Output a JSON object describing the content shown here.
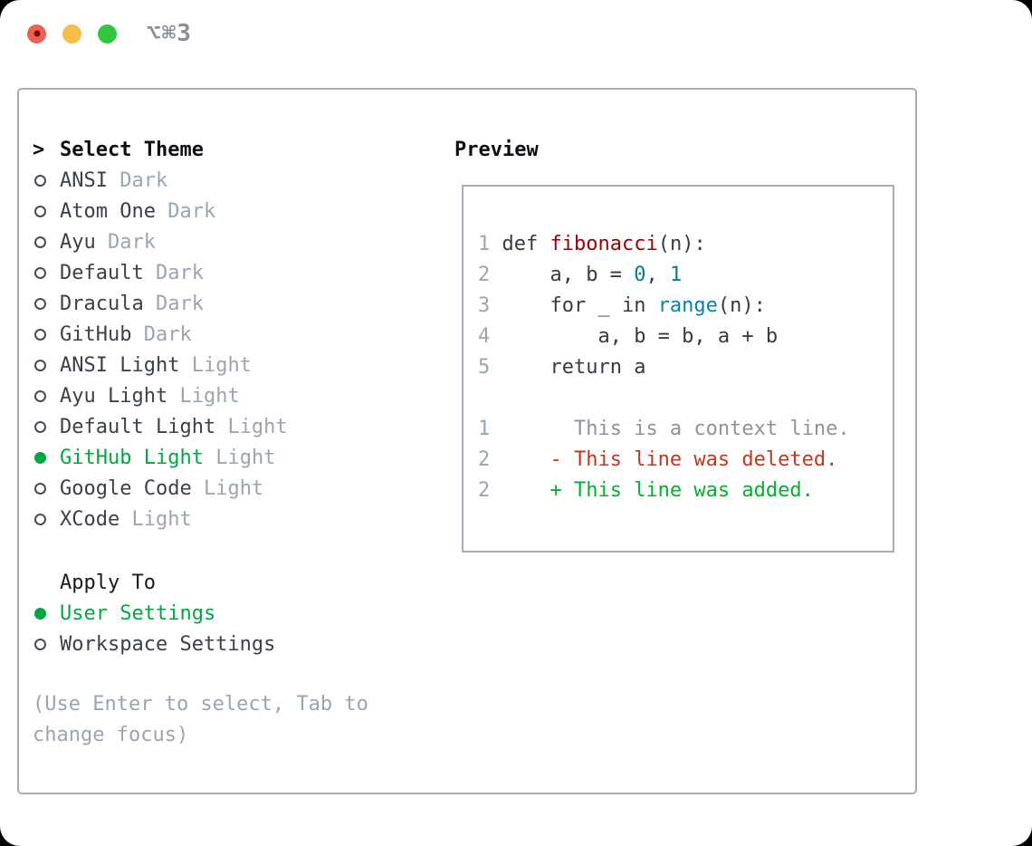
{
  "window": {
    "title": "⌥⌘3"
  },
  "colors": {
    "traffic_red": "#ee5f56",
    "traffic_red_inner": "#7a1008",
    "traffic_yellow": "#f8bd49",
    "traffic_green": "#31c63f",
    "selected_green": "#00a83f",
    "code_plain": "#353b45",
    "code_function": "#990000",
    "code_number": "#008080",
    "code_builtin": "#0086b3",
    "line_number": "#9aa5b3",
    "diff_context": "#8d939b",
    "diff_deleted": "#c5361c",
    "diff_added": "#00b22c"
  },
  "theme_picker": {
    "prompt": ">",
    "title": "Select Theme",
    "items": [
      {
        "name": "ANSI",
        "variant": "Dark",
        "selected": false
      },
      {
        "name": "Atom One",
        "variant": "Dark",
        "selected": false
      },
      {
        "name": "Ayu",
        "variant": "Dark",
        "selected": false
      },
      {
        "name": "Default",
        "variant": "Dark",
        "selected": false
      },
      {
        "name": "Dracula",
        "variant": "Dark",
        "selected": false
      },
      {
        "name": "GitHub",
        "variant": "Dark",
        "selected": false
      },
      {
        "name": "ANSI Light",
        "variant": "Light",
        "selected": false
      },
      {
        "name": "Ayu Light",
        "variant": "Light",
        "selected": false
      },
      {
        "name": "Default Light",
        "variant": "Light",
        "selected": false
      },
      {
        "name": "GitHub Light",
        "variant": "Light",
        "selected": true
      },
      {
        "name": "Google Code",
        "variant": "Light",
        "selected": false
      },
      {
        "name": "XCode",
        "variant": "Light",
        "selected": false
      }
    ]
  },
  "apply_to": {
    "title": "Apply To",
    "options": [
      {
        "label": "User Settings",
        "selected": true
      },
      {
        "label": "Workspace Settings",
        "selected": false
      }
    ]
  },
  "help_text": "(Use Enter to select, Tab to change focus)",
  "preview": {
    "title": "Preview",
    "code_lines": [
      {
        "num": "1",
        "segments": [
          {
            "text": "def ",
            "color": "plain"
          },
          {
            "text": "fibonacci",
            "color": "function"
          },
          {
            "text": "(n):",
            "color": "plain"
          }
        ]
      },
      {
        "num": "2",
        "segments": [
          {
            "text": "    a, b = ",
            "color": "plain"
          },
          {
            "text": "0",
            "color": "number"
          },
          {
            "text": ", ",
            "color": "plain"
          },
          {
            "text": "1",
            "color": "number"
          }
        ]
      },
      {
        "num": "3",
        "segments": [
          {
            "text": "    for _ in ",
            "color": "plain"
          },
          {
            "text": "range",
            "color": "builtin"
          },
          {
            "text": "(n):",
            "color": "plain"
          }
        ]
      },
      {
        "num": "4",
        "segments": [
          {
            "text": "        a, b = b, a + b",
            "color": "plain"
          }
        ]
      },
      {
        "num": "5",
        "segments": [
          {
            "text": "    return a",
            "color": "plain"
          }
        ]
      }
    ],
    "diff_lines": [
      {
        "num": "1",
        "segments": [
          {
            "text": "      This is a context line.",
            "color": "context"
          }
        ]
      },
      {
        "num": "2",
        "segments": [
          {
            "text": "    - This line was deleted.",
            "color": "deleted"
          }
        ]
      },
      {
        "num": "2",
        "segments": [
          {
            "text": "    + This line was added.",
            "color": "added"
          }
        ]
      }
    ]
  }
}
